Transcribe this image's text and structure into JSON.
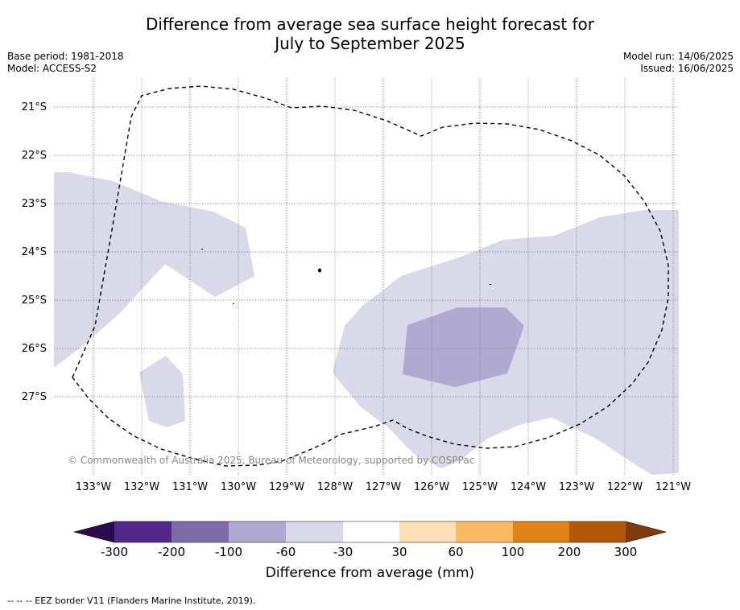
{
  "title_line1": "Difference from average sea surface height forecast for",
  "title_line2": "July to September 2025",
  "base_period": "Base period: 1981-2018",
  "model": "Model: ACCESS-S2",
  "model_run": "Model run: 14/06/2025",
  "issued": "Issued: 16/06/2025",
  "copyright": "© Commonwealth of Australia 2025, Bureau of Meteorology, supported by COSPPac",
  "footnote": "-- -- -- EEZ border V11 (Flanders Marine Institute, 2019).",
  "latitudes": [
    "21°S",
    "22°S",
    "23°S",
    "24°S",
    "25°S",
    "26°S",
    "27°S"
  ],
  "longitudes": [
    "133°W",
    "132°W",
    "131°W",
    "130°W",
    "129°W",
    "128°W",
    "127°W",
    "126°W",
    "125°W",
    "124°W",
    "123°W",
    "122°W",
    "121°W"
  ],
  "colorbar": {
    "title": "Difference from average (mm)",
    "tick_labels": [
      "-300",
      "-200",
      "-100",
      "-60",
      "-30",
      "30",
      "60",
      "100",
      "200",
      "300"
    ],
    "colors": [
      "#2d0a4e",
      "#54278f",
      "#7c6ca8",
      "#b0aad0",
      "#d9d9ea",
      "#ffffff",
      "#fee0b6",
      "#fdb863",
      "#e08214",
      "#b35806",
      "#7f3b08"
    ]
  },
  "legend": {
    "fill_colors": {
      "light_negative": "#d9d9ea",
      "medium_negative": "#b0aad0",
      "land_outline": "#000000"
    }
  }
}
